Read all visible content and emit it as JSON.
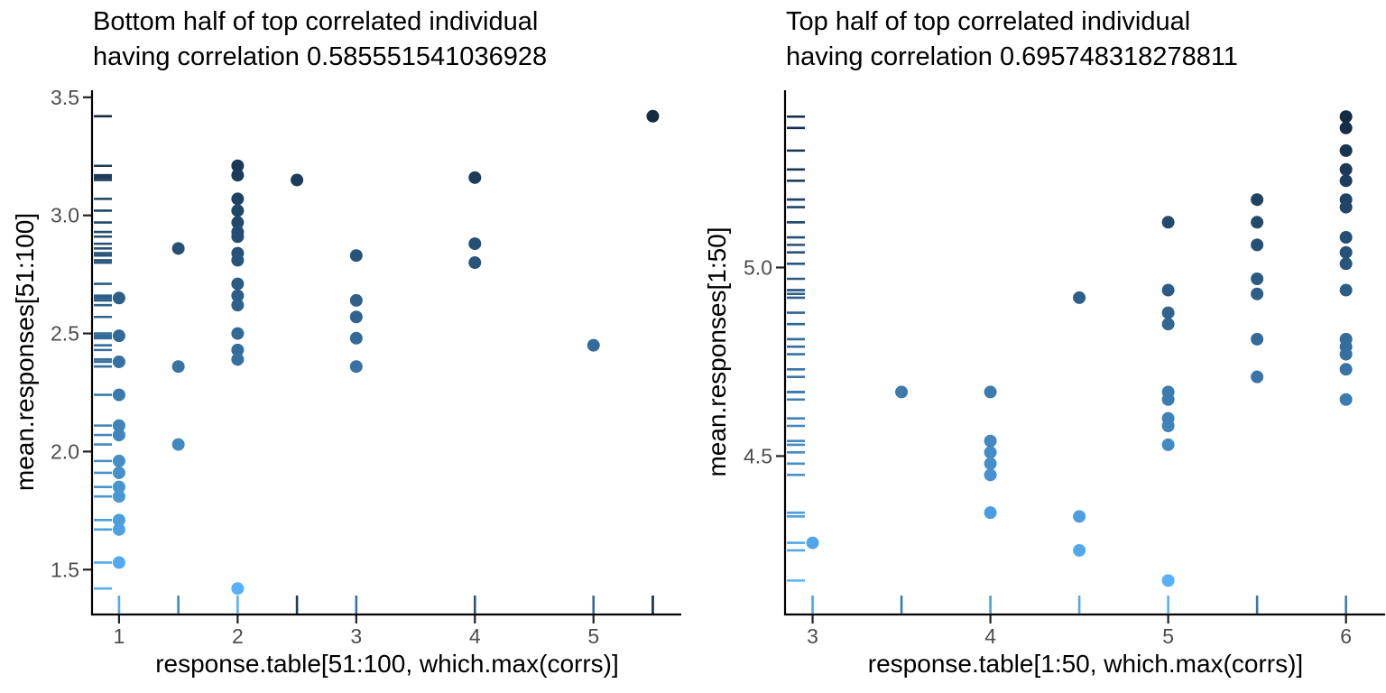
{
  "chart_data": [
    {
      "type": "scatter",
      "panel": "left",
      "title": "Bottom half of top correlated individual having correlation 0.585551541036928",
      "title_line1": "Bottom half of top correlated individual",
      "title_line2": "having correlation 0.585551541036928",
      "xlabel": "response.table[51:100, which.max(corrs)]",
      "ylabel": "mean.responses[51:100]",
      "x_ticks": [
        1,
        2,
        3,
        4,
        5
      ],
      "x_tick_labels": [
        "1",
        "2",
        "3",
        "4",
        "5"
      ],
      "y_ticks": [
        3.5,
        3.0,
        2.5,
        2.0,
        1.5
      ],
      "y_tick_labels": [
        "3.5",
        "3.0",
        "2.5",
        "2.0",
        "1.5"
      ],
      "xlim": [
        0.78,
        5.74
      ],
      "ylim": [
        1.31,
        3.53
      ],
      "grid": false,
      "legend": "none",
      "rug_axes": "x and y, colored like points",
      "color_scale": {
        "low_color": "#56B1F7",
        "high_color": "#132B43",
        "domain": [
          1.42,
          3.42
        ],
        "mapped_to": "y"
      },
      "points": [
        [
          1,
          2.65
        ],
        [
          1,
          2.49
        ],
        [
          1,
          2.38
        ],
        [
          1,
          2.24
        ],
        [
          1,
          2.11
        ],
        [
          1,
          2.07
        ],
        [
          1,
          1.96
        ],
        [
          1,
          1.91
        ],
        [
          1,
          1.85
        ],
        [
          1,
          1.81
        ],
        [
          1,
          1.71
        ],
        [
          1,
          1.67
        ],
        [
          1,
          1.53
        ],
        [
          1.5,
          2.86
        ],
        [
          1.5,
          2.36
        ],
        [
          1.5,
          2.03
        ],
        [
          2,
          3.21
        ],
        [
          2,
          3.17
        ],
        [
          2,
          3.07
        ],
        [
          2,
          3.02
        ],
        [
          2,
          2.97
        ],
        [
          2,
          2.93
        ],
        [
          2,
          2.91
        ],
        [
          2,
          2.84
        ],
        [
          2,
          2.81
        ],
        [
          2,
          2.71
        ],
        [
          2,
          2.66
        ],
        [
          2,
          2.62
        ],
        [
          2,
          2.5
        ],
        [
          2,
          2.43
        ],
        [
          2,
          2.39
        ],
        [
          2,
          1.42
        ],
        [
          2.5,
          3.15
        ],
        [
          3,
          2.83
        ],
        [
          3,
          2.64
        ],
        [
          3,
          2.57
        ],
        [
          3,
          2.48
        ],
        [
          3,
          2.36
        ],
        [
          4,
          3.16
        ],
        [
          4,
          2.88
        ],
        [
          4,
          2.8
        ],
        [
          5,
          2.45
        ],
        [
          5.5,
          3.42
        ]
      ]
    },
    {
      "type": "scatter",
      "panel": "right",
      "title": "Top half of top correlated individual having correlation 0.695748318278811",
      "title_line1": "Top half of top correlated individual",
      "title_line2": "having correlation 0.695748318278811",
      "xlabel": "response.table[1:50, which.max(corrs)]",
      "ylabel": "mean.responses[1:50]",
      "x_ticks": [
        3,
        4,
        5,
        6
      ],
      "x_tick_labels": [
        "3",
        "4",
        "5",
        "6"
      ],
      "y_ticks": [
        5.0,
        4.5
      ],
      "y_tick_labels": [
        "5.0",
        "4.5"
      ],
      "xlim": [
        2.85,
        6.22
      ],
      "ylim": [
        4.08,
        5.47
      ],
      "grid": false,
      "legend": "none",
      "rug_axes": "x and y, colored like points",
      "color_scale": {
        "low_color": "#56B1F7",
        "high_color": "#132B43",
        "domain": [
          4.17,
          5.4
        ],
        "mapped_to": "y"
      },
      "points": [
        [
          3,
          4.27
        ],
        [
          3.5,
          4.67
        ],
        [
          4,
          4.67
        ],
        [
          4,
          4.54
        ],
        [
          4,
          4.51
        ],
        [
          4,
          4.48
        ],
        [
          4,
          4.45
        ],
        [
          4,
          4.35
        ],
        [
          4.5,
          4.92
        ],
        [
          4.5,
          4.34
        ],
        [
          4.5,
          4.25
        ],
        [
          5,
          5.12
        ],
        [
          5,
          4.94
        ],
        [
          5,
          4.88
        ],
        [
          5,
          4.85
        ],
        [
          5,
          4.67
        ],
        [
          5,
          4.65
        ],
        [
          5,
          4.6
        ],
        [
          5,
          4.58
        ],
        [
          5,
          4.53
        ],
        [
          5,
          4.17
        ],
        [
          5.5,
          5.18
        ],
        [
          5.5,
          5.12
        ],
        [
          5.5,
          5.06
        ],
        [
          5.5,
          4.97
        ],
        [
          5.5,
          4.93
        ],
        [
          5.5,
          4.81
        ],
        [
          5.5,
          4.71
        ],
        [
          6,
          5.4
        ],
        [
          6,
          5.37
        ],
        [
          6,
          5.31
        ],
        [
          6,
          5.26
        ],
        [
          6,
          5.23
        ],
        [
          6,
          5.18
        ],
        [
          6,
          5.16
        ],
        [
          6,
          5.08
        ],
        [
          6,
          5.04
        ],
        [
          6,
          5.01
        ],
        [
          6,
          4.94
        ],
        [
          6,
          4.81
        ],
        [
          6,
          4.79
        ],
        [
          6,
          4.77
        ],
        [
          6,
          4.73
        ],
        [
          6,
          4.65
        ]
      ]
    }
  ]
}
